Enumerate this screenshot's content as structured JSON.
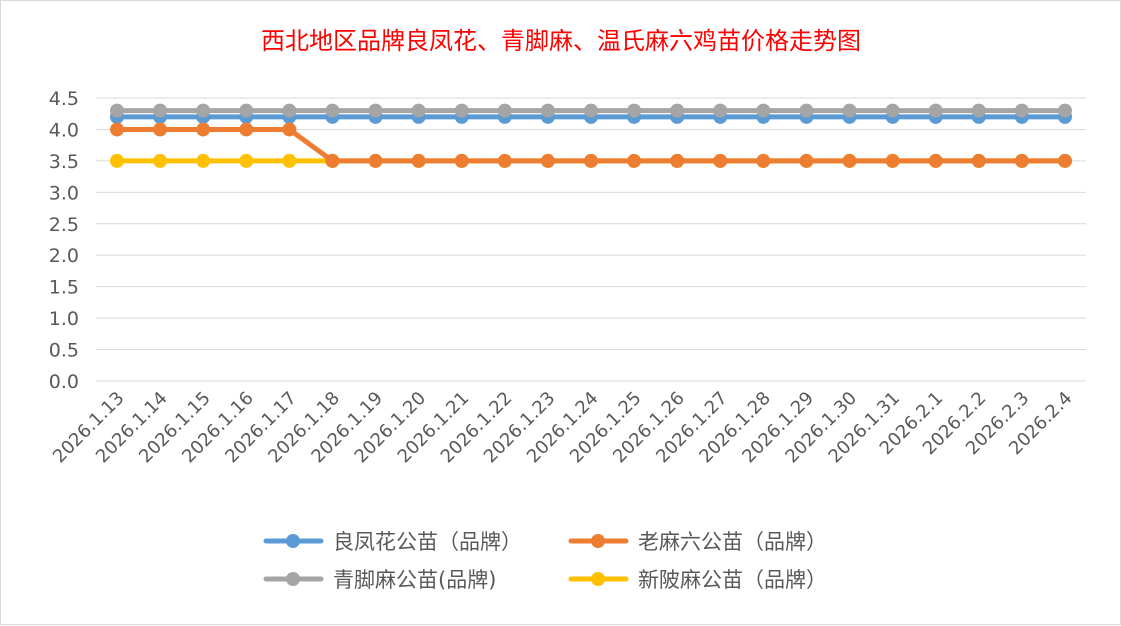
{
  "chart_data": {
    "type": "line",
    "title": "西北地区品牌良凤花、青脚麻、温氏麻六鸡苗价格走势图",
    "xlabel": "",
    "ylabel": "",
    "ylim": [
      0,
      4.5
    ],
    "yticks": [
      "0.0",
      "0.5",
      "1.0",
      "1.5",
      "2.0",
      "2.5",
      "3.0",
      "3.5",
      "4.0",
      "4.5"
    ],
    "grid": true,
    "legend_position": "bottom",
    "categories": [
      "2026.1.13",
      "2026.1.14",
      "2026.1.15",
      "2026.1.16",
      "2026.1.17",
      "2026.1.18",
      "2026.1.19",
      "2026.1.20",
      "2026.1.21",
      "2026.1.22",
      "2026.1.23",
      "2026.1.24",
      "2026.1.25",
      "2026.1.26",
      "2026.1.27",
      "2026.1.28",
      "2026.1.29",
      "2026.1.30",
      "2026.1.31",
      "2026.2.1",
      "2026.2.2",
      "2026.2.3",
      "2026.2.4"
    ],
    "series": [
      {
        "name": "良凤花公苗（品牌）",
        "color": "#5b9bd5",
        "values": [
          4.2,
          4.2,
          4.2,
          4.2,
          4.2,
          4.2,
          4.2,
          4.2,
          4.2,
          4.2,
          4.2,
          4.2,
          4.2,
          4.2,
          4.2,
          4.2,
          4.2,
          4.2,
          4.2,
          4.2,
          4.2,
          4.2,
          4.2
        ]
      },
      {
        "name": "老麻六公苗（品牌）",
        "color": "#ed7d31",
        "values": [
          4.0,
          4.0,
          4.0,
          4.0,
          4.0,
          3.5,
          3.5,
          3.5,
          3.5,
          3.5,
          3.5,
          3.5,
          3.5,
          3.5,
          3.5,
          3.5,
          3.5,
          3.5,
          3.5,
          3.5,
          3.5,
          3.5,
          3.5
        ]
      },
      {
        "name": "青脚麻公苗(品牌)",
        "color": "#a5a5a5",
        "values": [
          4.3,
          4.3,
          4.3,
          4.3,
          4.3,
          4.3,
          4.3,
          4.3,
          4.3,
          4.3,
          4.3,
          4.3,
          4.3,
          4.3,
          4.3,
          4.3,
          4.3,
          4.3,
          4.3,
          4.3,
          4.3,
          4.3,
          4.3
        ]
      },
      {
        "name": "新陂麻公苗（品牌）",
        "color": "#ffc000",
        "values": [
          3.5,
          3.5,
          3.5,
          3.5,
          3.5,
          3.5,
          3.5,
          3.5,
          3.5,
          3.5,
          3.5,
          3.5,
          3.5,
          3.5,
          3.5,
          3.5,
          3.5,
          3.5,
          3.5,
          3.5,
          3.5,
          3.5,
          3.5
        ]
      }
    ]
  }
}
